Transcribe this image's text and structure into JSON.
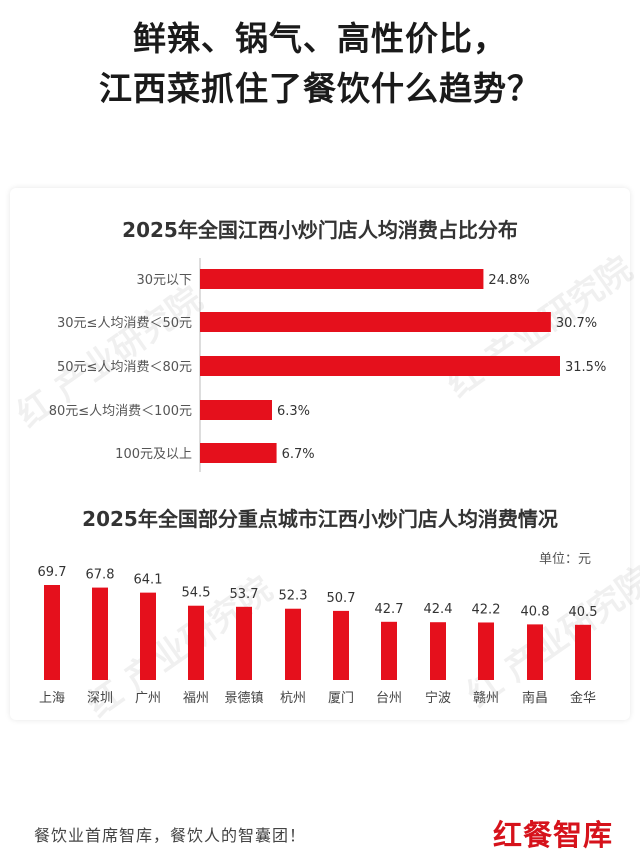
{
  "headline": {
    "line1": "鲜辣、锅气、高性价比，",
    "line2": "江西菜抓住了餐饮什么趋势？"
  },
  "colors": {
    "bar": "#e5101c",
    "logo": "#d6121b"
  },
  "watermark": "红 产业研究院",
  "chart_data": [
    {
      "type": "bar",
      "orientation": "horizontal",
      "title": "2025年全国江西小炒门店人均消费占比分布",
      "categories": [
        "30元以下",
        "30元≤人均消费＜50元",
        "50元≤人均消费＜80元",
        "80元≤人均消费＜100元",
        "100元及以上"
      ],
      "values": [
        24.8,
        30.7,
        31.5,
        6.3,
        6.7
      ],
      "value_labels": [
        "24.8%",
        "30.7%",
        "31.5%",
        "6.3%",
        "6.7%"
      ],
      "grid": false
    },
    {
      "type": "bar",
      "orientation": "vertical",
      "title": "2025年全国部分重点城市江西小炒门店人均消费情况",
      "unit": "单位：元",
      "categories": [
        "上海",
        "深圳",
        "广州",
        "福州",
        "景德镇",
        "杭州",
        "厦门",
        "台州",
        "宁波",
        "赣州",
        "南昌",
        "金华"
      ],
      "values": [
        69.7,
        67.8,
        64.1,
        54.5,
        53.7,
        52.3,
        50.7,
        42.7,
        42.4,
        42.2,
        40.8,
        40.5
      ],
      "grid": false
    }
  ],
  "footer": {
    "slogan": "餐饮业首席智库，餐饮人的智囊团！",
    "logo": "红餐智库"
  }
}
